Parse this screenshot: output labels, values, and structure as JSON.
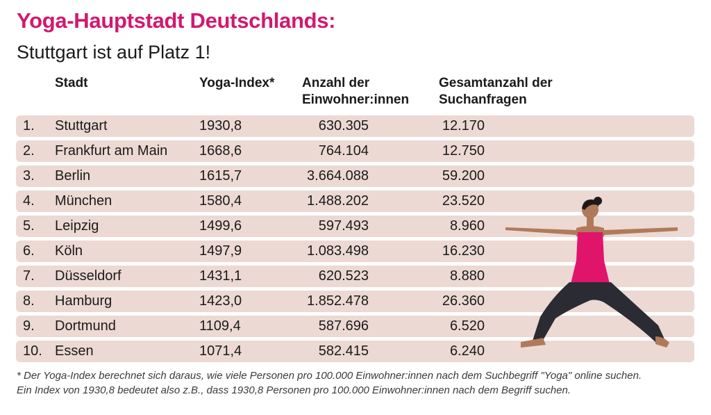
{
  "title": "Yoga-Hauptstadt Deutschlands:",
  "subtitle": "Stuttgart ist auf Platz 1!",
  "chart_data": {
    "type": "table",
    "columns": [
      "Stadt",
      "Yoga-Index*",
      "Anzahl der Einwohner:innen",
      "Gesamtanzahl der Suchanfragen"
    ],
    "rows": [
      {
        "rank": "1.",
        "city": "Stuttgart",
        "index": "1930,8",
        "population": "630.305",
        "searches": "12.170"
      },
      {
        "rank": "2.",
        "city": "Frankfurt am Main",
        "index": "1668,6",
        "population": "764.104",
        "searches": "12.750"
      },
      {
        "rank": "3.",
        "city": "Berlin",
        "index": "1615,7",
        "population": "3.664.088",
        "searches": "59.200"
      },
      {
        "rank": "4.",
        "city": "München",
        "index": "1580,4",
        "population": "1.488.202",
        "searches": "23.520"
      },
      {
        "rank": "5.",
        "city": "Leipzig",
        "index": "1499,6",
        "population": "597.493",
        "searches": "8.960"
      },
      {
        "rank": "6.",
        "city": "Köln",
        "index": "1497,9",
        "population": "1.083.498",
        "searches": "16.230"
      },
      {
        "rank": "7.",
        "city": "Düsseldorf",
        "index": "1431,1",
        "population": "620.523",
        "searches": "8.880"
      },
      {
        "rank": "8.",
        "city": "Hamburg",
        "index": "1423,0",
        "population": "1.852.478",
        "searches": "26.360"
      },
      {
        "rank": "9.",
        "city": "Dortmund",
        "index": "1109,4",
        "population": "587.696",
        "searches": "6.520"
      },
      {
        "rank": "10.",
        "city": "Essen",
        "index": "1071,4",
        "population": "582.415",
        "searches": "6.240"
      }
    ]
  },
  "headers": {
    "city": "Stadt",
    "index": "Yoga-Index*",
    "population_1": "Anzahl der",
    "population_2": "Einwohner:innen",
    "searches_1": "Gesamtanzahl der",
    "searches_2": "Suchanfragen"
  },
  "footnote": {
    "line1": "* Der Yoga-Index berechnet sich daraus, wie viele Personen pro 100.000 Einwohner:innen nach dem Suchbegriff \"Yoga\" online suchen.",
    "line2": "Ein Index von 1930,8 bedeutet also z.B., dass 1930,8 Personen pro 100.000 Einwohner:innen nach dem Begriff suchen."
  },
  "colors": {
    "accent": "#d2186f",
    "row_bg": "#ecd9d3",
    "skin": "#b07a5a",
    "pants": "#2b2b33",
    "top": "#e0146a",
    "hair": "#1f1a17"
  },
  "illustration": "yoga-warrior-pose-woman"
}
